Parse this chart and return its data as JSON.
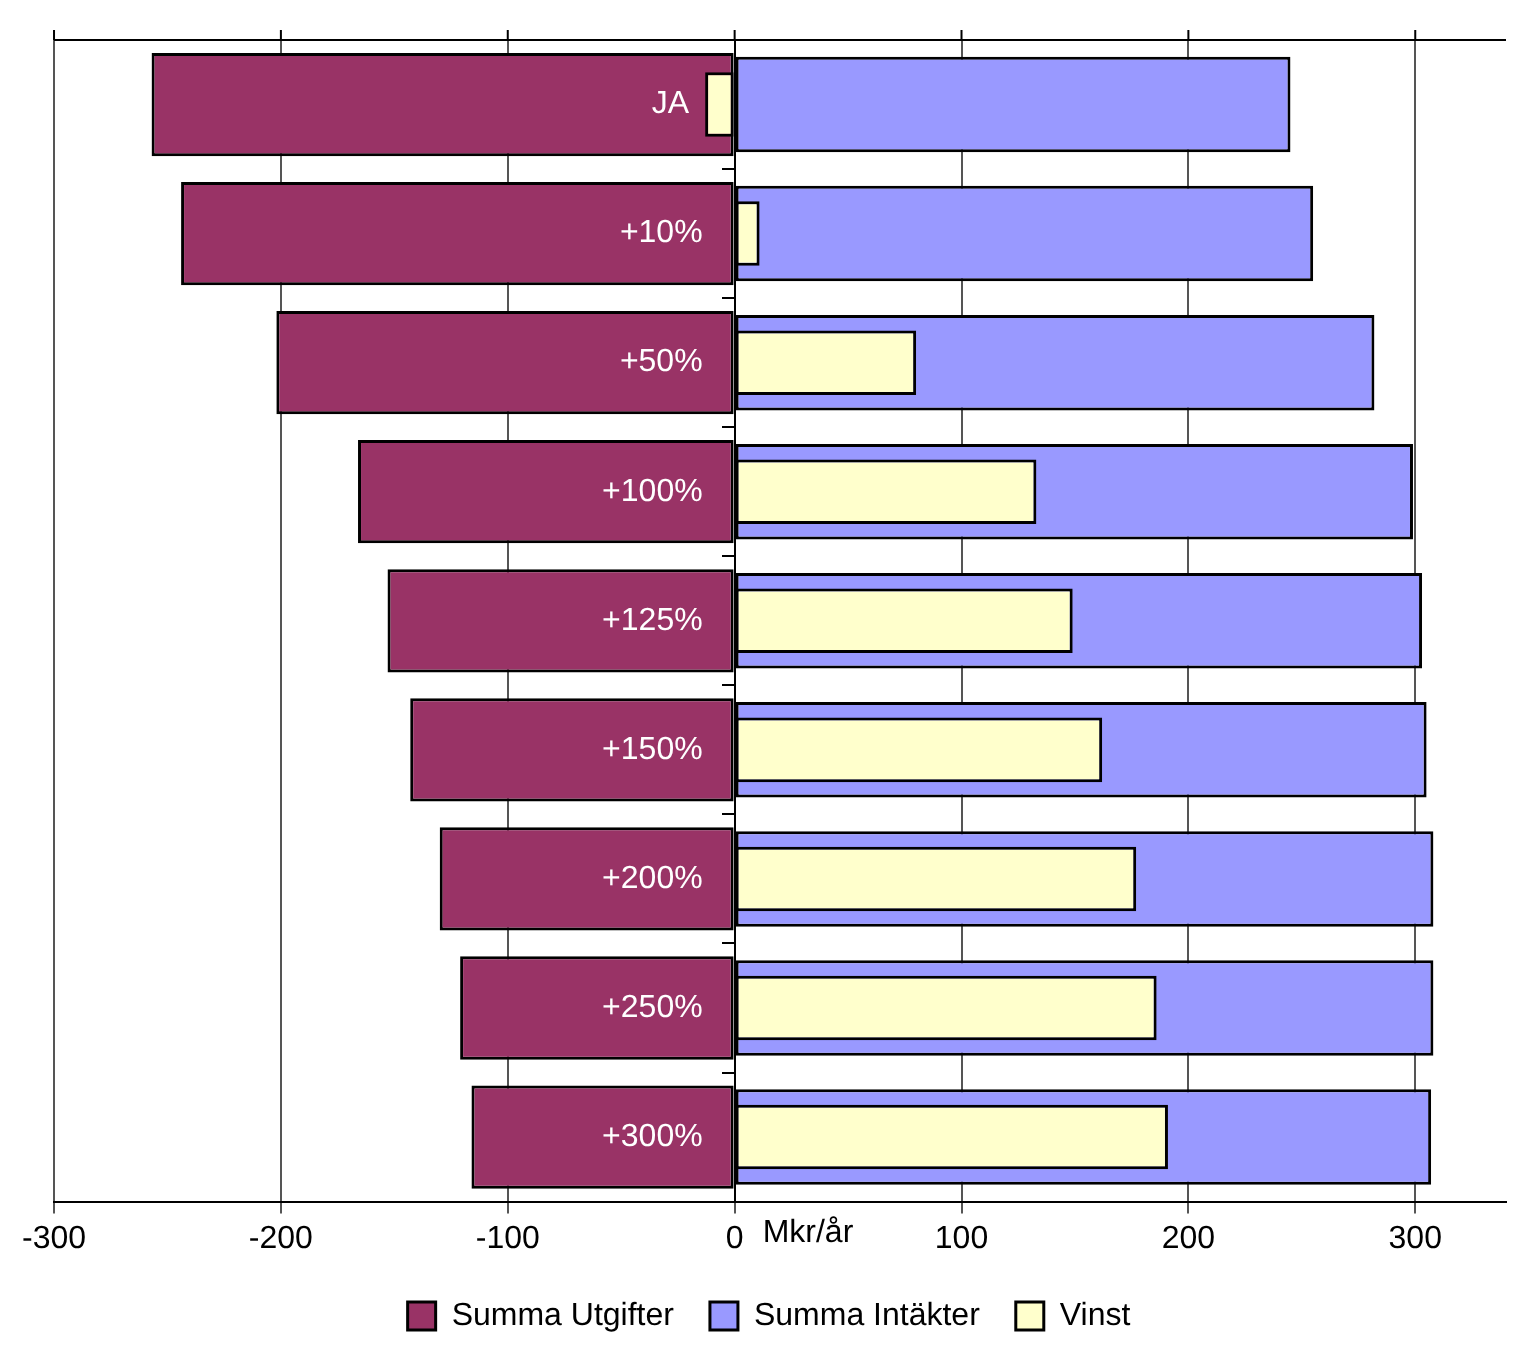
{
  "chart_data": {
    "type": "bar",
    "orientation": "horizontal",
    "xlabel": "Mkr/år",
    "categories": [
      "JA",
      "+10%",
      "+50%",
      "+100%",
      "+125%",
      "+150%",
      "+200%",
      "+250%",
      "+300%"
    ],
    "series": [
      {
        "name": "Summa Utgifter",
        "color": "#993366",
        "values": [
          -257,
          -244,
          -202,
          -166,
          -153,
          -143,
          -130,
          -121,
          -116
        ]
      },
      {
        "name": "Summa Intäkter",
        "color": "#9999ff",
        "values": [
          245,
          255,
          282,
          299,
          303,
          305,
          308,
          308,
          307
        ]
      },
      {
        "name": "Vinst",
        "color": "#ffffcc",
        "values": [
          -13,
          11,
          80,
          133,
          149,
          162,
          177,
          186,
          191
        ]
      }
    ],
    "xlim": [
      -300,
      340
    ],
    "xticks": [
      -300,
      -200,
      -100,
      0,
      100,
      200,
      300
    ],
    "grid": "x",
    "legend": "bottom"
  }
}
